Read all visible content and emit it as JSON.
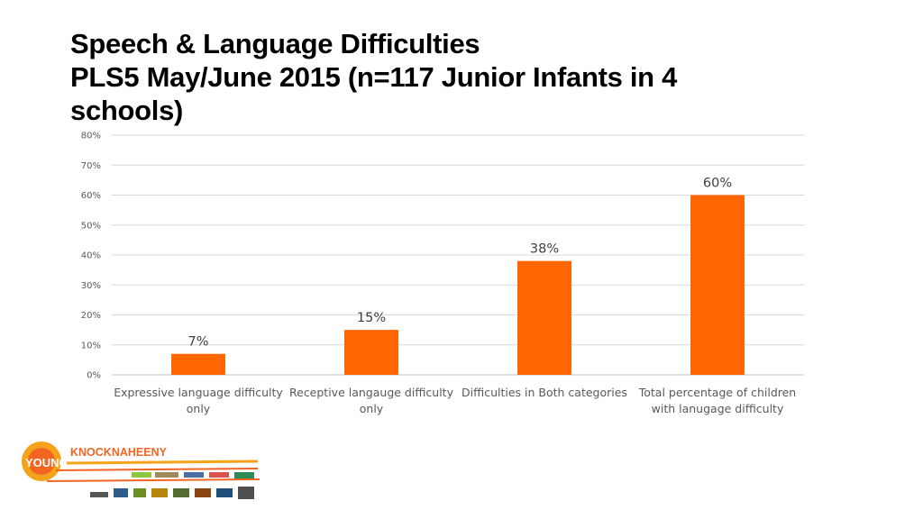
{
  "slide": {
    "title_line1": "Speech & Language Difficulties",
    "title_line2": "PLS5 May/June 2015 (n=117 Junior Infants in 4",
    "title_line3": "schools)"
  },
  "colors": {
    "bar": "#FF6600",
    "grid": "#D9D9D9",
    "text": "#595959"
  },
  "logo": {
    "text1": "YOUNG",
    "text2": "KNOCKNAHEENY"
  },
  "chart_data": {
    "type": "bar",
    "categories": [
      [
        "Expressive language difficulty",
        "only"
      ],
      [
        "Receptive langauge difficulty",
        "only"
      ],
      [
        "Difficulties in Both categories"
      ],
      [
        "Total percentage of children",
        "with lanugage difficulty"
      ]
    ],
    "values": [
      7,
      15,
      38,
      60
    ],
    "data_labels": [
      "7%",
      "15%",
      "38%",
      "60%"
    ],
    "ylim": [
      0,
      80
    ],
    "yticks": [
      0,
      10,
      20,
      30,
      40,
      50,
      60,
      70,
      80
    ],
    "ytick_labels": [
      "0%",
      "10%",
      "20%",
      "30%",
      "40%",
      "50%",
      "60%",
      "70%",
      "80%"
    ],
    "grid": true,
    "legend": "none"
  }
}
